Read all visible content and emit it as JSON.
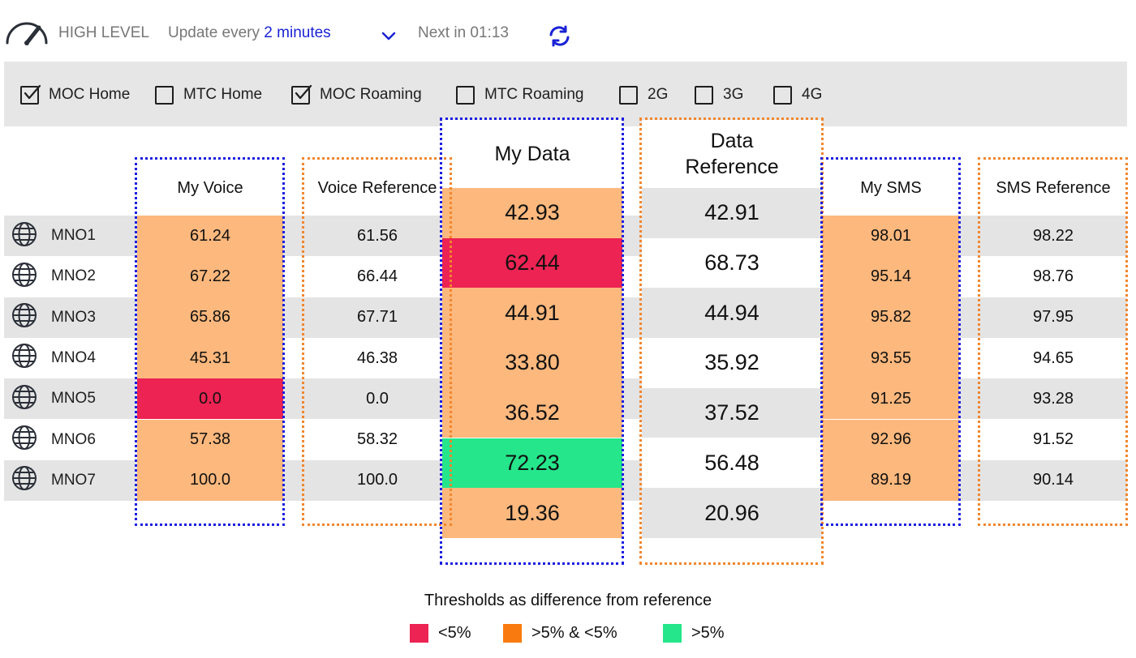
{
  "header": {
    "title": "HIGH LEVEL",
    "update_prefix": "Update every",
    "update_value": "2 minutes",
    "next_label": "Next in 01:13"
  },
  "filters": [
    {
      "label": "MOC Home",
      "checked": true
    },
    {
      "label": "MTC Home",
      "checked": false
    },
    {
      "label": "MOC Roaming",
      "checked": true
    },
    {
      "label": "MTC Roaming",
      "checked": false
    },
    {
      "label": "2G",
      "checked": false
    },
    {
      "label": "3G",
      "checked": false
    },
    {
      "label": "4G",
      "checked": false
    }
  ],
  "operators": [
    "MNO1",
    "MNO2",
    "MNO3",
    "MNO4",
    "MNO5",
    "MNO6",
    "MNO7"
  ],
  "columns": {
    "my_voice": {
      "header": "My Voice",
      "values": [
        "61.24",
        "67.22",
        "65.86",
        "45.31",
        "0.0",
        "57.38",
        "100.0"
      ],
      "status": [
        "orange",
        "orange",
        "orange",
        "orange",
        "red",
        "orange",
        "orange"
      ]
    },
    "voice_ref": {
      "header": "Voice Reference",
      "values": [
        "61.56",
        "66.44",
        "67.71",
        "46.38",
        "0.0",
        "58.32",
        "100.0"
      ]
    },
    "my_data": {
      "header": "My Data",
      "values": [
        "42.93",
        "62.44",
        "44.91",
        "33.80",
        "36.52",
        "72.23",
        "19.36"
      ],
      "status": [
        "orange",
        "red",
        "orange",
        "orange",
        "orange",
        "green",
        "orange"
      ]
    },
    "data_ref": {
      "header": "Data Reference",
      "values": [
        "42.91",
        "68.73",
        "44.94",
        "35.92",
        "37.52",
        "56.48",
        "20.96"
      ]
    },
    "my_sms": {
      "header": "My SMS",
      "values": [
        "98.01",
        "95.14",
        "95.82",
        "93.55",
        "91.25",
        "92.96",
        "89.19"
      ],
      "status": [
        "orange",
        "orange",
        "orange",
        "orange",
        "orange",
        "orange",
        "orange"
      ]
    },
    "sms_ref": {
      "header": "SMS Reference",
      "values": [
        "98.22",
        "98.76",
        "97.95",
        "94.65",
        "93.28",
        "91.52",
        "90.14"
      ]
    }
  },
  "legend": {
    "title": "Thresholds as difference from reference",
    "items": [
      {
        "label": "<5%",
        "color": "#ec2353"
      },
      {
        "label": ">5% & <5%",
        "color": "#f97b0f"
      },
      {
        "label": ">5%",
        "color": "#25e68b"
      }
    ]
  },
  "colors": {
    "accent": "#1a23d6",
    "status_orange": "#fdb87d",
    "status_red": "#ec2353",
    "status_green": "#25e68b",
    "row_stripe": "#e4e4e4"
  },
  "icons": [
    "gauge-icon",
    "chevron-down-icon",
    "refresh-icon",
    "checkbox-icon",
    "globe-icon"
  ]
}
